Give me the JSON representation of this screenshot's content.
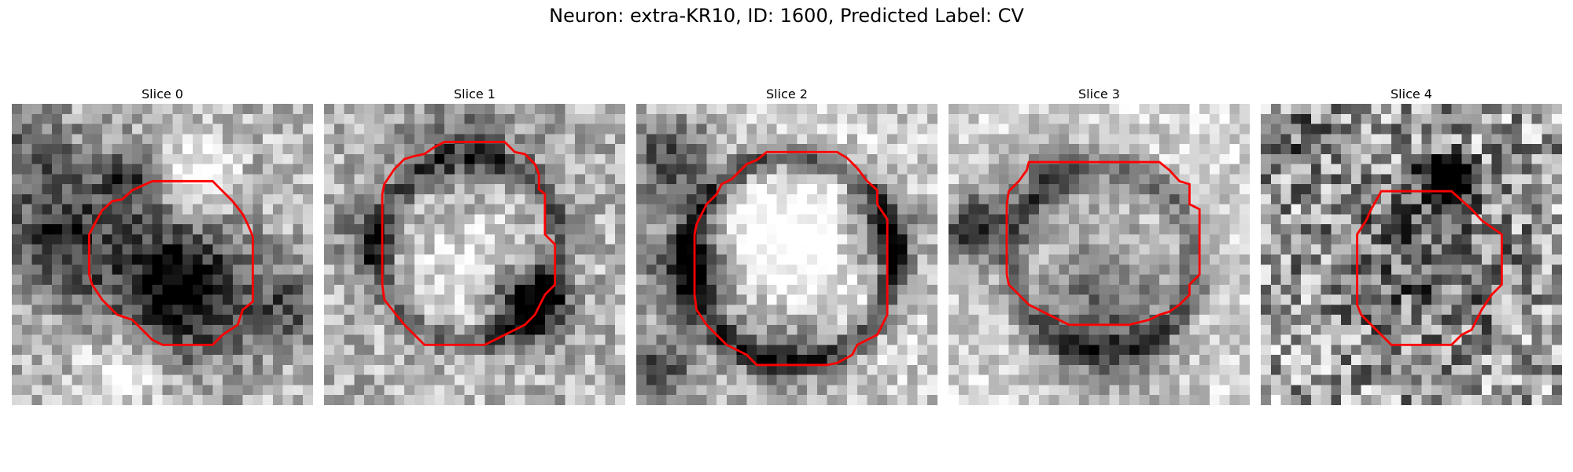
{
  "figure": {
    "title": "Neuron: extra-KR10, ID: 1600, Predicted Label: CV",
    "contour_color": "#ff0000",
    "grid_size": 30,
    "colormap": "gray"
  },
  "panels": [
    {
      "label": "Slice 0"
    },
    {
      "label": "Slice 1"
    },
    {
      "label": "Slice 2"
    },
    {
      "label": "Slice 3"
    },
    {
      "label": "Slice 4"
    }
  ]
}
